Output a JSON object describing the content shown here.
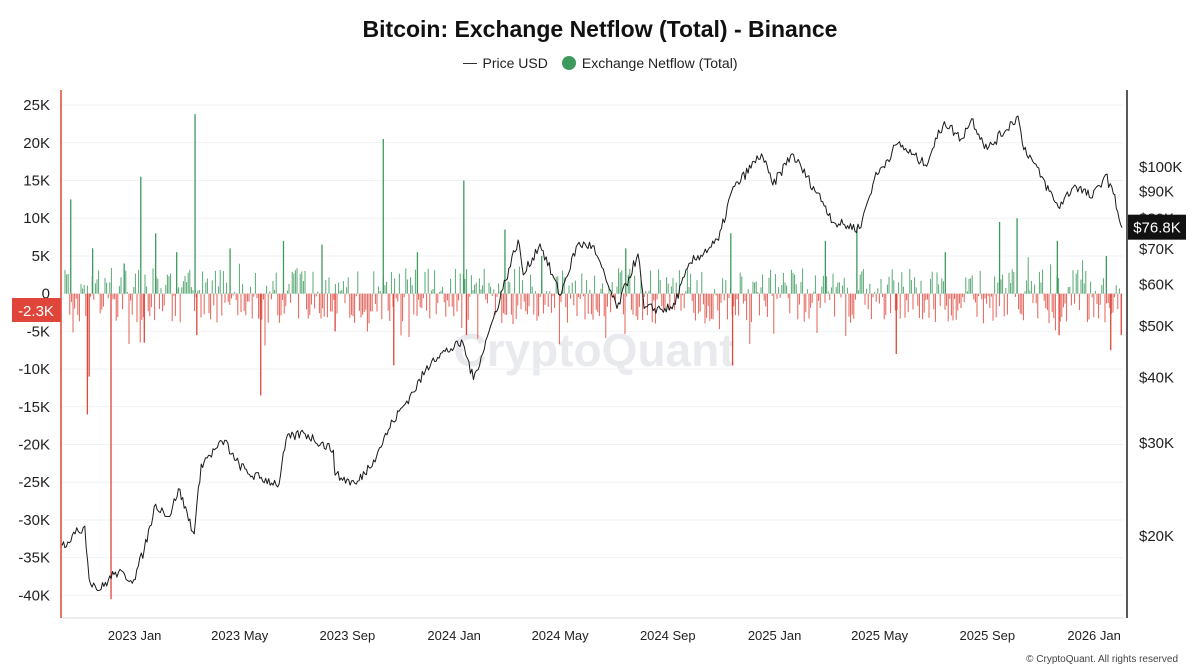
{
  "chart_data": {
    "title": "Bitcoin: Exchange Netflow (Total) - Binance",
    "type": "bar+line",
    "legend": {
      "position": "top-center"
    },
    "series": [
      {
        "name": "Price USD",
        "type": "line",
        "axis": "right",
        "color": "#1a1a1a"
      },
      {
        "name": "Exchange Netflow (Total)",
        "type": "bar",
        "axis": "left",
        "color": "#3d9a5c",
        "negative_color": "#e0453a"
      }
    ],
    "x_ticks": [
      "2023 Jan",
      "2023 May",
      "2023 Sep",
      "2024 Jan",
      "2024 May",
      "2024 Sep",
      "2025 Jan",
      "2025 May",
      "2025 Sep",
      "2026 Jan"
    ],
    "x_range": [
      "2022-10-10",
      "2026-02-03"
    ],
    "left_axis": {
      "ticks": [
        "25K",
        "20K",
        "15K",
        "10K",
        "5K",
        "0",
        "-5K",
        "-10K",
        "-15K",
        "-20K",
        "-25K",
        "-30K",
        "-35K",
        "-40K"
      ],
      "range": [
        -43000,
        27000
      ],
      "current_label": "-2.3K",
      "current_value": -2300
    },
    "right_axis": {
      "scale": "log",
      "ticks": [
        "$100K",
        "$90K",
        "$80K",
        "$70K",
        "$60K",
        "$50K",
        "$40K",
        "$30K",
        "$20K"
      ],
      "range": [
        14000,
        140000
      ],
      "current_label": "$76.8K",
      "current_value": 76800
    },
    "price": [
      [
        "2022-10-10",
        19200
      ],
      [
        "2022-10-25",
        20200
      ],
      [
        "2022-11-05",
        20900
      ],
      [
        "2022-11-10",
        16600
      ],
      [
        "2022-11-22",
        15800
      ],
      [
        "2022-12-10",
        17100
      ],
      [
        "2022-12-31",
        16550
      ],
      [
        "2023-01-12",
        18900
      ],
      [
        "2023-01-25",
        23000
      ],
      [
        "2023-02-10",
        21800
      ],
      [
        "2023-02-20",
        24600
      ],
      [
        "2023-03-10",
        20200
      ],
      [
        "2023-03-18",
        27400
      ],
      [
        "2023-04-14",
        30400
      ],
      [
        "2023-04-25",
        27900
      ],
      [
        "2023-05-12",
        26200
      ],
      [
        "2023-06-15",
        25100
      ],
      [
        "2023-06-23",
        30500
      ],
      [
        "2023-07-13",
        31400
      ],
      [
        "2023-08-16",
        29100
      ],
      [
        "2023-08-18",
        26100
      ],
      [
        "2023-09-11",
        25100
      ],
      [
        "2023-10-01",
        27900
      ],
      [
        "2023-10-23",
        33000
      ],
      [
        "2023-11-15",
        37500
      ],
      [
        "2023-12-08",
        43500
      ],
      [
        "2024-01-11",
        46500
      ],
      [
        "2024-01-23",
        39600
      ],
      [
        "2024-02-15",
        51800
      ],
      [
        "2024-03-14",
        72800
      ],
      [
        "2024-03-20",
        62500
      ],
      [
        "2024-04-08",
        71600
      ],
      [
        "2024-05-01",
        57200
      ],
      [
        "2024-05-21",
        71400
      ],
      [
        "2024-06-07",
        71000
      ],
      [
        "2024-07-05",
        54000
      ],
      [
        "2024-07-29",
        68500
      ],
      [
        "2024-08-05",
        54000
      ],
      [
        "2024-09-06",
        53900
      ],
      [
        "2024-09-27",
        65900
      ],
      [
        "2024-10-29",
        72700
      ],
      [
        "2024-11-13",
        90000
      ],
      [
        "2024-12-17",
        106000
      ],
      [
        "2024-12-30",
        92500
      ],
      [
        "2025-01-21",
        106000
      ],
      [
        "2025-02-25",
        86000
      ],
      [
        "2025-03-10",
        78500
      ],
      [
        "2025-04-08",
        76500
      ],
      [
        "2025-04-25",
        95000
      ],
      [
        "2025-05-22",
        111000
      ],
      [
        "2025-06-22",
        101000
      ],
      [
        "2025-07-14",
        122000
      ],
      [
        "2025-08-02",
        113000
      ],
      [
        "2025-08-14",
        123500
      ],
      [
        "2025-09-01",
        108000
      ],
      [
        "2025-10-06",
        125000
      ],
      [
        "2025-10-11",
        111000
      ],
      [
        "2025-11-21",
        84000
      ],
      [
        "2025-12-10",
        92500
      ],
      [
        "2025-12-30",
        87500
      ],
      [
        "2026-01-14",
        96800
      ],
      [
        "2026-01-23",
        89000
      ],
      [
        "2026-02-02",
        76800
      ]
    ],
    "netflow_spikes": [
      [
        "2022-10-20",
        12500
      ],
      [
        "2022-11-08",
        -16000
      ],
      [
        "2022-11-10",
        -11000
      ],
      [
        "2022-11-14",
        6000
      ],
      [
        "2022-12-05",
        -40500
      ],
      [
        "2022-12-20",
        4000
      ],
      [
        "2023-01-08",
        15500
      ],
      [
        "2023-01-12",
        -6500
      ],
      [
        "2023-01-25",
        8000
      ],
      [
        "2023-02-18",
        5500
      ],
      [
        "2023-03-11",
        23800
      ],
      [
        "2023-03-13",
        -5500
      ],
      [
        "2023-04-20",
        6000
      ],
      [
        "2023-05-25",
        -13500
      ],
      [
        "2023-06-20",
        7000
      ],
      [
        "2023-08-03",
        6500
      ],
      [
        "2023-08-18",
        -5000
      ],
      [
        "2023-10-12",
        20500
      ],
      [
        "2023-10-24",
        -9500
      ],
      [
        "2023-11-20",
        5500
      ],
      [
        "2024-01-12",
        15000
      ],
      [
        "2024-01-15",
        -5500
      ],
      [
        "2024-02-28",
        8500
      ],
      [
        "2024-04-10",
        5000
      ],
      [
        "2024-07-15",
        6000
      ],
      [
        "2024-11-12",
        8000
      ],
      [
        "2024-11-14",
        -9500
      ],
      [
        "2025-02-28",
        7000
      ],
      [
        "2025-04-05",
        8800
      ],
      [
        "2025-05-20",
        -8000
      ],
      [
        "2025-07-15",
        5500
      ],
      [
        "2025-09-15",
        9500
      ],
      [
        "2025-10-05",
        10000
      ],
      [
        "2025-11-20",
        7000
      ],
      [
        "2025-11-22",
        -5500
      ],
      [
        "2026-01-15",
        5000
      ],
      [
        "2026-01-20",
        -7500
      ],
      [
        "2026-02-01",
        -5500
      ]
    ]
  },
  "watermark": "CryptoQuant",
  "copyright": "© CryptoQuant. All rights reserved"
}
